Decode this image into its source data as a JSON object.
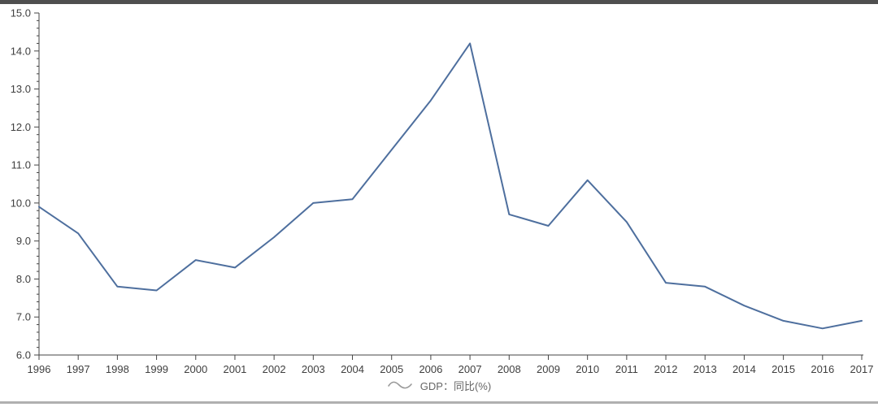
{
  "page": {
    "background_color": "#ffffff",
    "top_bar_color": "#4f4f4f",
    "bottom_bar_color": "#b0b0b0"
  },
  "legend": {
    "label": "GDP：同比(%)",
    "symbol": "wave-line",
    "symbol_color": "#999999",
    "text_color": "#666666"
  },
  "chart_data": {
    "type": "line",
    "title": "",
    "xlabel": "",
    "ylabel": "",
    "categories": [
      "1996",
      "1997",
      "1998",
      "1999",
      "2000",
      "2001",
      "2002",
      "2003",
      "2004",
      "2005",
      "2006",
      "2007",
      "2008",
      "2009",
      "2010",
      "2011",
      "2012",
      "2013",
      "2014",
      "2015",
      "2016",
      "2017"
    ],
    "series": [
      {
        "name": "GDP：同比(%)",
        "values": [
          9.9,
          9.2,
          7.8,
          7.7,
          8.5,
          8.3,
          9.1,
          10.0,
          10.1,
          11.4,
          12.7,
          14.2,
          9.7,
          9.4,
          10.6,
          9.5,
          7.9,
          7.8,
          7.3,
          6.9,
          6.7,
          6.9
        ],
        "color": "#4e6f9e",
        "line_width": 2
      }
    ],
    "ylim": [
      6.0,
      15.0
    ],
    "y_major_step": 1.0,
    "y_minor_step": 0.2,
    "y_tick_decimals": 1,
    "grid": false,
    "legend_position": "bottom-center",
    "axis_color": "#444444",
    "tick_label_color": "#3f3f3f",
    "tick_label_font_size": 13
  }
}
